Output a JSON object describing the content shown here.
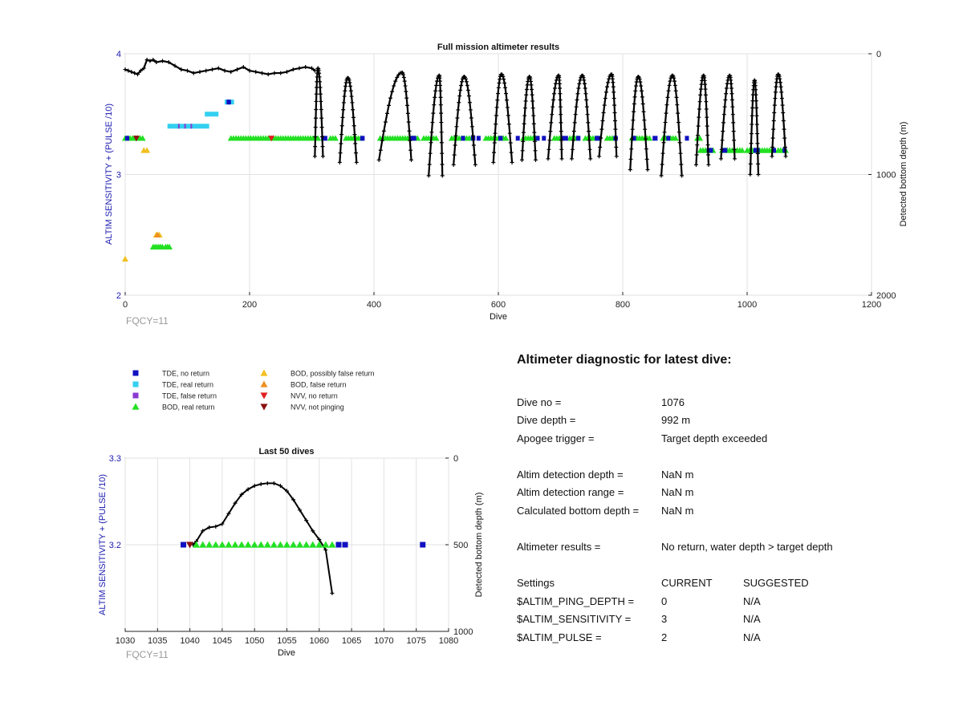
{
  "chart_data": [
    {
      "type": "scatter",
      "title": "Full mission altimeter results",
      "xlabel": "Dive",
      "ylabel": "ALTIM SENSITIVITY + (PULSE /10)",
      "ylabel_right": "Detected bottom depth (m)",
      "xlim": [
        0,
        1200
      ],
      "ylim": [
        2,
        4
      ],
      "ylim_right": [
        0,
        2000
      ],
      "xticks": [
        "0",
        "200",
        "400",
        "600",
        "800",
        "1000",
        "1200"
      ],
      "yticks": [
        "2",
        "3",
        "4"
      ],
      "yticks_right": [
        "0",
        "1000",
        "2000"
      ],
      "annotation": "FQCY=11",
      "grid": true,
      "series": [
        {
          "name": "TDE, no return",
          "color": "#1010c0",
          "segments": [
            [
              0,
              5
            ],
            [
              163,
              170
            ],
            [
              315,
              325
            ],
            [
              378,
              385
            ],
            [
              458,
              468
            ],
            [
              540,
              546
            ],
            [
              556,
              563
            ],
            [
              565,
              570
            ],
            [
              600,
              607
            ],
            [
              628,
              634
            ],
            [
              660,
              665
            ],
            [
              670,
              676
            ],
            [
              700,
              712
            ],
            [
              725,
              732
            ],
            [
              755,
              764
            ],
            [
              785,
              792
            ],
            [
              815,
              820
            ],
            [
              848,
              856
            ],
            [
              870,
              876
            ],
            [
              900,
              905
            ],
            [
              935,
              945
            ],
            [
              960,
              968
            ],
            [
              1010,
              1020
            ],
            [
              1040,
              1045
            ],
            [
              1057,
              1063
            ]
          ],
          "y_low": 3.2,
          "y_low_dives": [
            [
              925,
              1065
            ]
          ]
        },
        {
          "name": "TDE, real return",
          "color": "#33d0f0",
          "segments": [
            [
              68,
              135
            ],
            [
              128,
              150
            ],
            [
              160,
              175
            ]
          ],
          "levels": [
            3.4,
            3.5,
            3.6
          ]
        },
        {
          "name": "TDE, false return",
          "color": "#8a3ad0",
          "segments": [
            [
              85,
              87
            ],
            [
              95,
              97
            ],
            [
              105,
              107
            ]
          ]
        },
        {
          "name": "BOD, real return",
          "color": "#22e022",
          "segments": [
            [
              0,
              30
            ],
            [
              170,
              310
            ],
            [
              330,
              340
            ],
            [
              355,
              380
            ],
            [
              410,
              470
            ],
            [
              480,
              500
            ],
            [
              525,
              560
            ],
            [
              580,
              615
            ],
            [
              640,
              660
            ],
            [
              690,
              705
            ],
            [
              715,
              730
            ],
            [
              740,
              760
            ],
            [
              775,
              790
            ],
            [
              815,
              845
            ],
            [
              865,
              885
            ],
            [
              920,
              925
            ]
          ],
          "y_low_segments": [
            [
              925,
              945
            ],
            [
              960,
              995
            ],
            [
              1000,
              1045
            ],
            [
              1050,
              1062
            ]
          ]
        },
        {
          "name": "BOD, possibly false return",
          "color": "#f0c020",
          "points": [
            [
              0,
              2.3
            ],
            [
              30,
              3.2
            ],
            [
              35,
              3.2
            ],
            [
              50,
              2.5
            ],
            [
              55,
              2.5
            ]
          ]
        },
        {
          "name": "BOD, false return",
          "color": "#f09020",
          "points": [
            [
              52,
              2.5
            ]
          ]
        },
        {
          "name": "NVV, no return",
          "color": "#e02020",
          "points": [
            [
              235,
              3.3
            ]
          ]
        },
        {
          "name": "NVV, not pinging",
          "color": "#8b1010",
          "points": [
            [
              18,
              3.3
            ]
          ]
        }
      ],
      "depth_trace_shallow": [
        [
          0,
          130
        ],
        [
          5,
          140
        ],
        [
          10,
          150
        ],
        [
          15,
          160
        ],
        [
          20,
          170
        ],
        [
          25,
          140
        ],
        [
          30,
          120
        ],
        [
          35,
          50
        ],
        [
          40,
          60
        ],
        [
          45,
          50
        ],
        [
          50,
          70
        ],
        [
          60,
          60
        ],
        [
          70,
          70
        ],
        [
          80,
          100
        ],
        [
          90,
          130
        ],
        [
          100,
          140
        ],
        [
          110,
          160
        ],
        [
          120,
          150
        ],
        [
          130,
          140
        ],
        [
          140,
          130
        ],
        [
          150,
          120
        ],
        [
          160,
          140
        ],
        [
          170,
          150
        ],
        [
          180,
          130
        ],
        [
          190,
          110
        ],
        [
          200,
          140
        ],
        [
          210,
          150
        ],
        [
          220,
          160
        ],
        [
          230,
          170
        ],
        [
          240,
          160
        ],
        [
          250,
          160
        ],
        [
          260,
          150
        ],
        [
          270,
          130
        ],
        [
          280,
          120
        ],
        [
          290,
          110
        ],
        [
          300,
          120
        ],
        [
          305,
          140
        ]
      ],
      "dive_cycles": [
        {
          "start": 305,
          "peak": 310,
          "end": 318,
          "top": 120,
          "bottom": 850
        },
        {
          "start": 345,
          "peak": 358,
          "end": 372,
          "top": 200,
          "bottom": 900
        },
        {
          "start": 408,
          "peak": 445,
          "end": 460,
          "top": 155,
          "bottom": 880
        },
        {
          "start": 488,
          "peak": 505,
          "end": 510,
          "top": 180,
          "bottom": 1010
        },
        {
          "start": 528,
          "peak": 545,
          "end": 563,
          "top": 190,
          "bottom": 920
        },
        {
          "start": 592,
          "peak": 605,
          "end": 622,
          "top": 170,
          "bottom": 900
        },
        {
          "start": 638,
          "peak": 650,
          "end": 660,
          "top": 190,
          "bottom": 880
        },
        {
          "start": 680,
          "peak": 697,
          "end": 702,
          "top": 180,
          "bottom": 870
        },
        {
          "start": 718,
          "peak": 735,
          "end": 748,
          "top": 180,
          "bottom": 870
        },
        {
          "start": 762,
          "peak": 782,
          "end": 790,
          "top": 170,
          "bottom": 850
        },
        {
          "start": 812,
          "peak": 825,
          "end": 840,
          "top": 190,
          "bottom": 960
        },
        {
          "start": 862,
          "peak": 880,
          "end": 895,
          "top": 180,
          "bottom": 1010
        },
        {
          "start": 918,
          "peak": 930,
          "end": 938,
          "top": 180,
          "bottom": 920
        },
        {
          "start": 958,
          "peak": 972,
          "end": 980,
          "top": 180,
          "bottom": 870
        },
        {
          "start": 1005,
          "peak": 1012,
          "end": 1018,
          "top": 220,
          "bottom": 1000
        },
        {
          "start": 1040,
          "peak": 1050,
          "end": 1062,
          "top": 170,
          "bottom": 850
        }
      ]
    },
    {
      "type": "scatter",
      "title": "Last 50 dives",
      "xlabel": "Dive",
      "ylabel": "ALTIM SENSITIVITY + (PULSE /10)",
      "ylabel_right": "Detected bottom depth (m)",
      "xlim": [
        1030,
        1080
      ],
      "ylim": [
        3.1,
        3.3
      ],
      "ylim_right": [
        0,
        1000
      ],
      "xticks": [
        "1030",
        "1035",
        "1040",
        "1045",
        "1050",
        "1055",
        "1060",
        "1065",
        "1070",
        "1075",
        "1080"
      ],
      "yticks": [
        "3.2",
        "3.3"
      ],
      "yticks_right": [
        "0",
        "500",
        "1000"
      ],
      "annotation": "FQCY=11",
      "grid": true,
      "tde_no_return": [
        1039,
        1063,
        1064,
        1076
      ],
      "bod_real_return": [
        1041,
        1042,
        1043,
        1044,
        1045,
        1046,
        1047,
        1048,
        1049,
        1050,
        1051,
        1052,
        1053,
        1054,
        1055,
        1056,
        1057,
        1058,
        1059,
        1060,
        1061,
        1062
      ],
      "nvv_not_pinging": [
        1040
      ],
      "sensitivity_level": 3.2,
      "depth_trace": [
        [
          1040.5,
          500
        ],
        [
          1041,
          480
        ],
        [
          1042,
          420
        ],
        [
          1043,
          400
        ],
        [
          1044,
          395
        ],
        [
          1045,
          380
        ],
        [
          1046,
          320
        ],
        [
          1047,
          260
        ],
        [
          1048,
          210
        ],
        [
          1049,
          180
        ],
        [
          1050,
          160
        ],
        [
          1051,
          150
        ],
        [
          1052,
          145
        ],
        [
          1053,
          145
        ],
        [
          1054,
          160
        ],
        [
          1055,
          190
        ],
        [
          1056,
          240
        ],
        [
          1057,
          300
        ],
        [
          1058,
          360
        ],
        [
          1059,
          420
        ],
        [
          1060,
          470
        ],
        [
          1061,
          530
        ],
        [
          1062,
          780
        ]
      ]
    }
  ],
  "legend": {
    "col1": [
      {
        "label": "TDE, no return",
        "color": "#1010c0",
        "shape": "square"
      },
      {
        "label": "TDE, real return",
        "color": "#33d0f0",
        "shape": "square"
      },
      {
        "label": "TDE, false return",
        "color": "#8a3ad0",
        "shape": "square"
      },
      {
        "label": "BOD, real return",
        "color": "#22e022",
        "shape": "triangle-up"
      }
    ],
    "col2": [
      {
        "label": "BOD, possibly false return",
        "color": "#f0c020",
        "shape": "triangle-up"
      },
      {
        "label": "BOD, false return",
        "color": "#f09020",
        "shape": "triangle-up"
      },
      {
        "label": "NVV, no return",
        "color": "#e02020",
        "shape": "triangle-down"
      },
      {
        "label": "NVV, not pinging",
        "color": "#8b1010",
        "shape": "triangle-down"
      }
    ]
  },
  "diagnostic": {
    "title": "Altimeter diagnostic for latest dive:",
    "dive_no_label": "Dive no =",
    "dive_no": "1076",
    "dive_depth_label": "Dive depth =",
    "dive_depth": "992 m",
    "apogee_label": "Apogee trigger =",
    "apogee": "Target depth exceeded",
    "altim_det_depth_label": "Altim detection depth =",
    "altim_det_depth": "NaN m",
    "altim_det_range_label": "Altim detection range =",
    "altim_det_range": "NaN m",
    "calc_bottom_label": "Calculated bottom depth =",
    "calc_bottom": "NaN m",
    "results_label": "Altimeter results =",
    "results": "No return, water depth > target depth",
    "settings_label": "Settings",
    "current_label": "CURRENT",
    "suggested_label": "SUGGESTED",
    "ping_depth_label": "$ALTIM_PING_DEPTH =",
    "ping_depth_current": "0",
    "ping_depth_suggested": "N/A",
    "sensitivity_label": "$ALTIM_SENSITIVITY =",
    "sensitivity_current": "3",
    "sensitivity_suggested": "N/A",
    "pulse_label": "$ALTIM_PULSE =",
    "pulse_current": "2",
    "pulse_suggested": "N/A"
  }
}
